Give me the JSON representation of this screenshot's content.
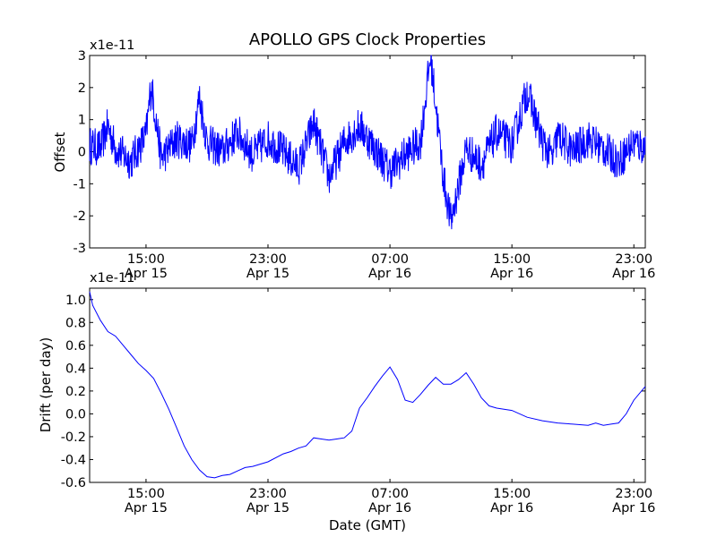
{
  "chart_data": [
    {
      "type": "line",
      "title": "APOLLO GPS Clock Properties",
      "xlabel": "",
      "ylabel": "Offset",
      "y_scale_label": "x1e-11",
      "ylim": [
        -3,
        3
      ],
      "yticks": [
        "3",
        "2",
        "1",
        "0",
        "-1",
        "-2",
        "-3"
      ],
      "xlim": [
        "Apr 15 11:18",
        "Apr 16 23:45"
      ],
      "xticks": [
        {
          "time": "15:00",
          "date": "Apr 15"
        },
        {
          "time": "23:00",
          "date": "Apr 15"
        },
        {
          "time": "07:00",
          "date": "Apr 16"
        },
        {
          "time": "15:00",
          "date": "Apr 16"
        },
        {
          "time": "23:00",
          "date": "Apr 16"
        }
      ],
      "series": [
        {
          "color": "#0000ff",
          "x": [
            "Apr 15 11:18",
            "Apr 15 12:00",
            "Apr 15 12:30",
            "Apr 15 13:00",
            "Apr 15 14:00",
            "Apr 15 15:00",
            "Apr 15 15:20",
            "Apr 15 16:00",
            "Apr 15 17:00",
            "Apr 15 18:00",
            "Apr 15 18:30",
            "Apr 15 19:00",
            "Apr 15 20:00",
            "Apr 15 21:00",
            "Apr 15 22:00",
            "Apr 15 23:00",
            "Apr 16 00:00",
            "Apr 16 01:00",
            "Apr 16 02:00",
            "Apr 16 03:00",
            "Apr 16 04:00",
            "Apr 16 05:00",
            "Apr 16 06:00",
            "Apr 16 07:00",
            "Apr 16 08:00",
            "Apr 16 09:00",
            "Apr 16 09:40",
            "Apr 16 10:30",
            "Apr 16 11:00",
            "Apr 16 12:00",
            "Apr 16 13:00",
            "Apr 16 14:00",
            "Apr 16 15:00",
            "Apr 16 16:00",
            "Apr 16 17:00",
            "Apr 16 17:40",
            "Apr 16 18:00",
            "Apr 16 19:00",
            "Apr 16 20:00",
            "Apr 16 21:00",
            "Apr 16 22:00",
            "Apr 16 23:00",
            "Apr 16 23:45"
          ],
          "values": [
            0.2,
            0.1,
            0.8,
            0.1,
            -0.3,
            0.5,
            2.1,
            -0.2,
            0.4,
            0.2,
            1.7,
            0.3,
            0.0,
            0.6,
            -0.1,
            0.4,
            0.0,
            -0.5,
            0.9,
            -0.8,
            0.3,
            0.8,
            0.1,
            -0.6,
            -0.1,
            0.3,
            3.0,
            -0.8,
            -2.2,
            0.1,
            -0.4,
            0.6,
            0.2,
            1.9,
            0.3,
            -0.2,
            0.5,
            0.0,
            0.4,
            0.1,
            -0.3,
            0.3,
            0.1
          ],
          "noise_amplitude": 0.6
        }
      ]
    },
    {
      "type": "line",
      "title": "",
      "xlabel": "Date (GMT)",
      "ylabel": "Drift (per day)",
      "y_scale_label": "x1e-11",
      "ylim": [
        -0.6,
        1.1
      ],
      "yticks": [
        "1.0",
        "0.8",
        "0.6",
        "0.4",
        "0.2",
        "0.0",
        "-0.2",
        "-0.4",
        "-0.6"
      ],
      "xlim": [
        "Apr 15 11:18",
        "Apr 16 23:45"
      ],
      "xticks": [
        {
          "time": "15:00",
          "date": "Apr 15"
        },
        {
          "time": "23:00",
          "date": "Apr 15"
        },
        {
          "time": "07:00",
          "date": "Apr 16"
        },
        {
          "time": "15:00",
          "date": "Apr 16"
        },
        {
          "time": "23:00",
          "date": "Apr 16"
        }
      ],
      "series": [
        {
          "color": "#0000ff",
          "x": [
            "Apr 15 11:18",
            "Apr 15 11:30",
            "Apr 15 12:00",
            "Apr 15 12:30",
            "Apr 15 13:00",
            "Apr 15 13:30",
            "Apr 15 14:00",
            "Apr 15 14:30",
            "Apr 15 15:00",
            "Apr 15 15:30",
            "Apr 15 16:00",
            "Apr 15 16:30",
            "Apr 15 17:00",
            "Apr 15 17:30",
            "Apr 15 18:00",
            "Apr 15 18:30",
            "Apr 15 19:00",
            "Apr 15 19:30",
            "Apr 15 20:00",
            "Apr 15 20:30",
            "Apr 15 21:00",
            "Apr 15 21:30",
            "Apr 15 22:00",
            "Apr 15 23:00",
            "Apr 16 00:00",
            "Apr 16 00:30",
            "Apr 16 01:00",
            "Apr 16 01:30",
            "Apr 16 02:00",
            "Apr 16 02:30",
            "Apr 16 03:00",
            "Apr 16 03:30",
            "Apr 16 04:00",
            "Apr 16 04:30",
            "Apr 16 05:00",
            "Apr 16 05:30",
            "Apr 16 06:00",
            "Apr 16 06:30",
            "Apr 16 07:00",
            "Apr 16 07:30",
            "Apr 16 08:00",
            "Apr 16 08:30",
            "Apr 16 09:00",
            "Apr 16 09:30",
            "Apr 16 10:00",
            "Apr 16 10:30",
            "Apr 16 11:00",
            "Apr 16 11:30",
            "Apr 16 12:00",
            "Apr 16 12:30",
            "Apr 16 13:00",
            "Apr 16 13:30",
            "Apr 16 14:00",
            "Apr 16 15:00",
            "Apr 16 16:00",
            "Apr 16 17:00",
            "Apr 16 18:00",
            "Apr 16 19:00",
            "Apr 16 20:00",
            "Apr 16 20:30",
            "Apr 16 21:00",
            "Apr 16 21:30",
            "Apr 16 22:00",
            "Apr 16 22:30",
            "Apr 16 23:00",
            "Apr 16 23:45"
          ],
          "values": [
            1.07,
            0.95,
            0.82,
            0.72,
            0.68,
            0.6,
            0.52,
            0.44,
            0.38,
            0.31,
            0.18,
            0.04,
            -0.12,
            -0.28,
            -0.4,
            -0.49,
            -0.55,
            -0.56,
            -0.54,
            -0.53,
            -0.5,
            -0.47,
            -0.46,
            -0.42,
            -0.35,
            -0.33,
            -0.3,
            -0.28,
            -0.21,
            -0.22,
            -0.23,
            -0.22,
            -0.21,
            -0.15,
            0.05,
            0.14,
            0.24,
            0.33,
            0.41,
            0.3,
            0.12,
            0.1,
            0.17,
            0.25,
            0.32,
            0.26,
            0.26,
            0.3,
            0.36,
            0.26,
            0.14,
            0.07,
            0.05,
            0.03,
            -0.03,
            -0.06,
            -0.08,
            -0.09,
            -0.1,
            -0.08,
            -0.1,
            -0.09,
            -0.08,
            0.0,
            0.12,
            0.24
          ]
        }
      ]
    }
  ]
}
